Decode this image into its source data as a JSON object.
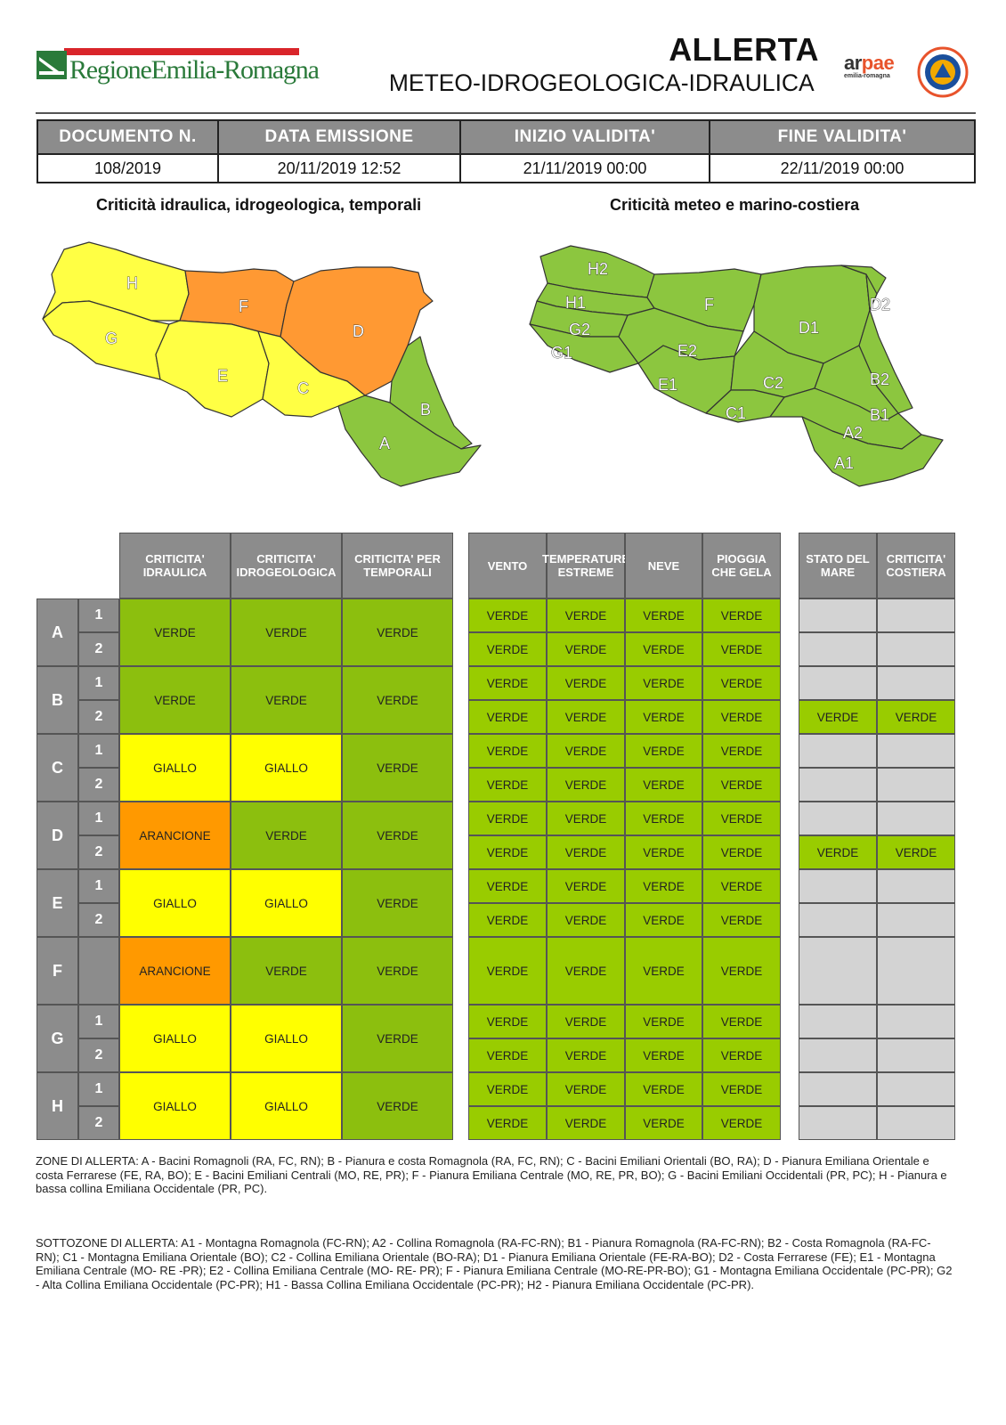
{
  "header": {
    "region_logo_text": "RegioneEmilia-Romagna",
    "title": "ALLERTA",
    "subtitle": "METEO-IDROGEOLOGICA-IDRAULICA",
    "arpae_logo": "arpae",
    "arpae_sub": "emilia-romagna",
    "civil_protection_logo": "PROTEZIONE CIVILE EMILIA-ROMAGNA"
  },
  "document": {
    "headers": [
      "DOCUMENTO N.",
      "DATA EMISSIONE",
      "INIZIO VALIDITA'",
      "FINE VALIDITA'"
    ],
    "values": [
      "108/2019",
      "20/11/2019 12:52",
      "21/11/2019 00:00",
      "22/11/2019 00:00"
    ]
  },
  "maps": {
    "left_title": "Criticità idraulica, idrogeologica, temporali",
    "right_title": "Criticità meteo e marino-costiera",
    "left_labels": [
      "H",
      "F",
      "D",
      "G",
      "E",
      "C",
      "B",
      "A"
    ],
    "right_labels": [
      "H2",
      "H1",
      "G2",
      "G1",
      "F",
      "E2",
      "E1",
      "D1",
      "D2",
      "C2",
      "C1",
      "B2",
      "B1",
      "A2",
      "A1"
    ]
  },
  "table": {
    "group1_headers": [
      "CRITICITA' IDRAULICA",
      "CRITICITA' IDROGEOLOGICA",
      "CRITICITA' PER TEMPORALI"
    ],
    "group2_headers": [
      "VENTO",
      "TEMPERATURE ESTREME",
      "NEVE",
      "PIOGGIA CHE GELA"
    ],
    "group3_headers": [
      "STATO DEL MARE",
      "CRITICITA' COSTIERA"
    ],
    "zones": [
      {
        "zone": "A",
        "subs": [
          "1",
          "2"
        ],
        "hydro": [
          "VERDE",
          "VERDE",
          "VERDE"
        ],
        "meteo": [
          [
            "VERDE",
            "VERDE",
            "VERDE",
            "VERDE"
          ],
          [
            "VERDE",
            "VERDE",
            "VERDE",
            "VERDE"
          ]
        ],
        "sea": [
          [
            "",
            ""
          ],
          [
            "",
            ""
          ]
        ]
      },
      {
        "zone": "B",
        "subs": [
          "1",
          "2"
        ],
        "hydro": [
          "VERDE",
          "VERDE",
          "VERDE"
        ],
        "meteo": [
          [
            "VERDE",
            "VERDE",
            "VERDE",
            "VERDE"
          ],
          [
            "VERDE",
            "VERDE",
            "VERDE",
            "VERDE"
          ]
        ],
        "sea": [
          [
            "",
            ""
          ],
          [
            "VERDE",
            "VERDE"
          ]
        ]
      },
      {
        "zone": "C",
        "subs": [
          "1",
          "2"
        ],
        "hydro": [
          "GIALLO",
          "GIALLO",
          "VERDE"
        ],
        "meteo": [
          [
            "VERDE",
            "VERDE",
            "VERDE",
            "VERDE"
          ],
          [
            "VERDE",
            "VERDE",
            "VERDE",
            "VERDE"
          ]
        ],
        "sea": [
          [
            "",
            ""
          ],
          [
            "",
            ""
          ]
        ]
      },
      {
        "zone": "D",
        "subs": [
          "1",
          "2"
        ],
        "hydro": [
          "ARANCIONE",
          "VERDE",
          "VERDE"
        ],
        "meteo": [
          [
            "VERDE",
            "VERDE",
            "VERDE",
            "VERDE"
          ],
          [
            "VERDE",
            "VERDE",
            "VERDE",
            "VERDE"
          ]
        ],
        "sea": [
          [
            "",
            ""
          ],
          [
            "VERDE",
            "VERDE"
          ]
        ]
      },
      {
        "zone": "E",
        "subs": [
          "1",
          "2"
        ],
        "hydro": [
          "GIALLO",
          "GIALLO",
          "VERDE"
        ],
        "meteo": [
          [
            "VERDE",
            "VERDE",
            "VERDE",
            "VERDE"
          ],
          [
            "VERDE",
            "VERDE",
            "VERDE",
            "VERDE"
          ]
        ],
        "sea": [
          [
            "",
            ""
          ],
          [
            "",
            ""
          ]
        ]
      },
      {
        "zone": "F",
        "subs": [],
        "hydro": [
          "ARANCIONE",
          "VERDE",
          "VERDE"
        ],
        "meteo": [
          [
            "VERDE",
            "VERDE",
            "VERDE",
            "VERDE"
          ]
        ],
        "sea": [
          [
            "",
            ""
          ]
        ]
      },
      {
        "zone": "G",
        "subs": [
          "1",
          "2"
        ],
        "hydro": [
          "GIALLO",
          "GIALLO",
          "VERDE"
        ],
        "meteo": [
          [
            "VERDE",
            "VERDE",
            "VERDE",
            "VERDE"
          ],
          [
            "VERDE",
            "VERDE",
            "VERDE",
            "VERDE"
          ]
        ],
        "sea": [
          [
            "",
            ""
          ],
          [
            "",
            ""
          ]
        ]
      },
      {
        "zone": "H",
        "subs": [
          "1",
          "2"
        ],
        "hydro": [
          "GIALLO",
          "GIALLO",
          "VERDE"
        ],
        "meteo": [
          [
            "VERDE",
            "VERDE",
            "VERDE",
            "VERDE"
          ],
          [
            "VERDE",
            "VERDE",
            "VERDE",
            "VERDE"
          ]
        ],
        "sea": [
          [
            "",
            ""
          ],
          [
            "",
            ""
          ]
        ]
      }
    ]
  },
  "notes": {
    "zone": "ZONE DI ALLERTA: A - Bacini Romagnoli (RA, FC, RN); B - Pianura e costa Romagnola (RA, FC, RN); C - Bacini Emiliani Orientali (BO, RA); D - Pianura Emiliana Orientale e costa Ferrarese (FE, RA, BO); E - Bacini Emiliani Centrali (MO, RE, PR); F - Pianura Emiliana Centrale (MO, RE, PR, BO); G - Bacini Emiliani Occidentali (PR, PC); H - Pianura e bassa collina Emiliana Occidentale (PR, PC).",
    "subzone": "SOTTOZONE DI ALLERTA: A1 - Montagna Romagnola (FC-RN); A2 - Collina Romagnola (RA-FC-RN); B1 - Pianura Romagnola (RA-FC-RN); B2 - Costa Romagnola (RA-FC-RN); C1 - Montagna Emiliana Orientale (BO); C2 - Collina Emiliana Orientale (BO-RA); D1 - Pianura Emiliana Orientale (FE-RA-BO); D2 - Costa Ferrarese (FE); E1 - Montagna Emiliana Centrale (MO- RE -PR); E2 - Collina Emiliana Centrale (MO- RE- PR); F - Pianura Emiliana Centrale (MO-RE-PR-BO); G1 - Montagna Emiliana Occidentale (PC-PR); G2 - Alta Collina Emiliana Occidentale (PC-PR); H1 - Bassa Collina Emiliana Occidentale (PC-PR); H2 - Pianura Emiliana Occidentale (PC-PR)."
  },
  "colors": {
    "verde": "#8cbf0e",
    "giallo": "#ffff00",
    "arancione": "#ff9900",
    "header_grey": "#8c8c8c",
    "empty_grey": "#d3d3d3"
  }
}
